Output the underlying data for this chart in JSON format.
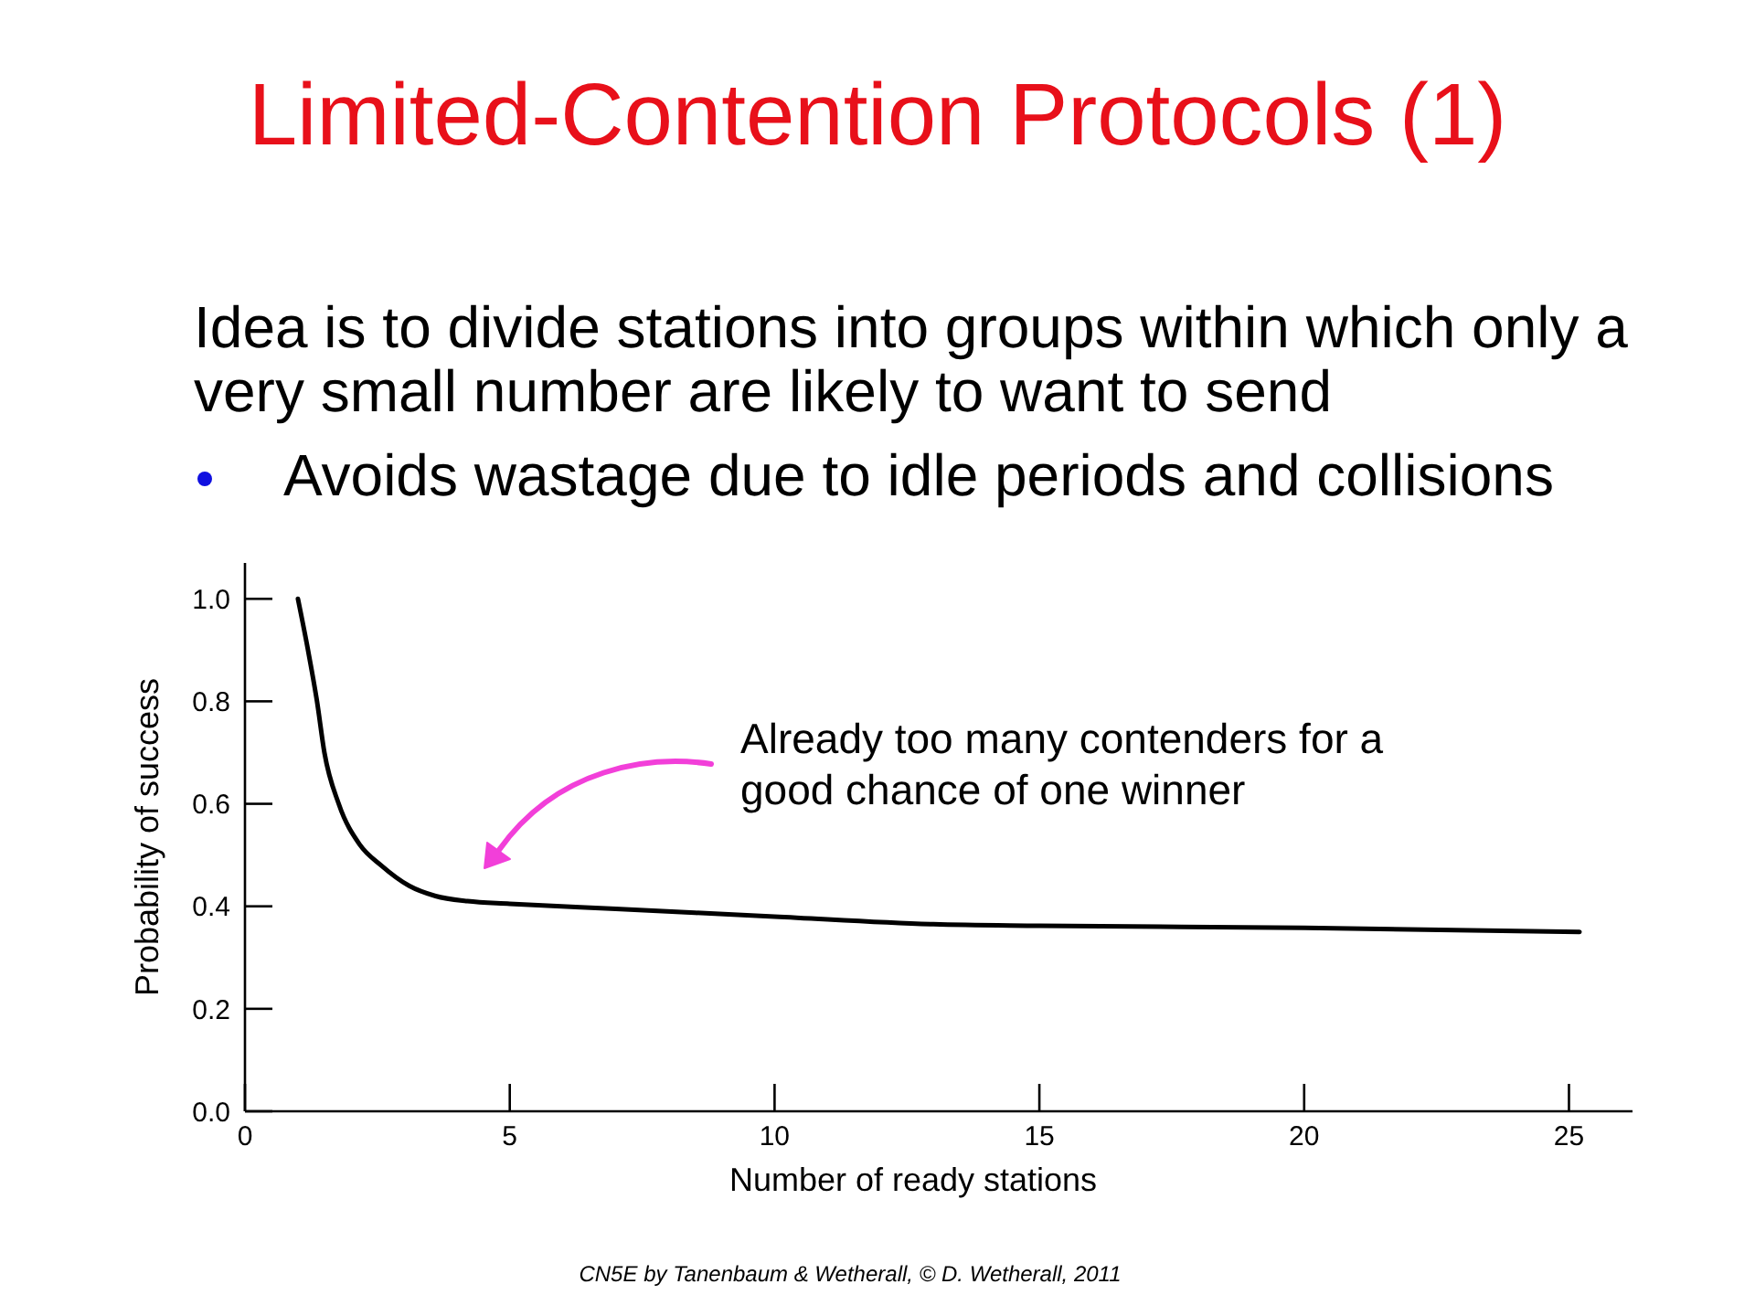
{
  "chart_data": {
    "type": "line",
    "title": "Limited-Contention Protocols (1)",
    "subtitle": "Idea is to divide stations into groups within which only a very small number are likely to want to send",
    "xlabel": "Number of ready stations",
    "ylabel": "Probability of success",
    "x": [
      1,
      1.19,
      1.36,
      1.5,
      1.77,
      2.17,
      2.57,
      3.1,
      3.6,
      4.2,
      5,
      7,
      10,
      13,
      15,
      20,
      25.2
    ],
    "values": [
      1,
      0.9,
      0.8,
      0.7,
      0.6,
      0.52,
      0.48,
      0.44,
      0.42,
      0.41,
      0.405,
      0.395,
      0.38,
      0.365,
      0.362,
      0.358,
      0.35
    ],
    "color": "#000000",
    "marker": "none",
    "line_style": "solid",
    "xlim": [
      0,
      26.2
    ],
    "xticks": [
      0,
      5,
      10,
      15,
      20,
      25
    ],
    "ylim": [
      0,
      1.07
    ],
    "yticks": [
      {
        "value": 0,
        "label": "0.0"
      },
      0.2,
      0.4,
      0.6,
      0.8,
      {
        "value": 1,
        "label": "1.0"
      }
    ],
    "annotations": [
      "Avoids wastage due to idle periods and collisions",
      "Already too many contenders for a good chance of one winner",
      "CN5E by Tanenbaum & Wetherall, © D. Wetherall, 2011"
    ]
  }
}
